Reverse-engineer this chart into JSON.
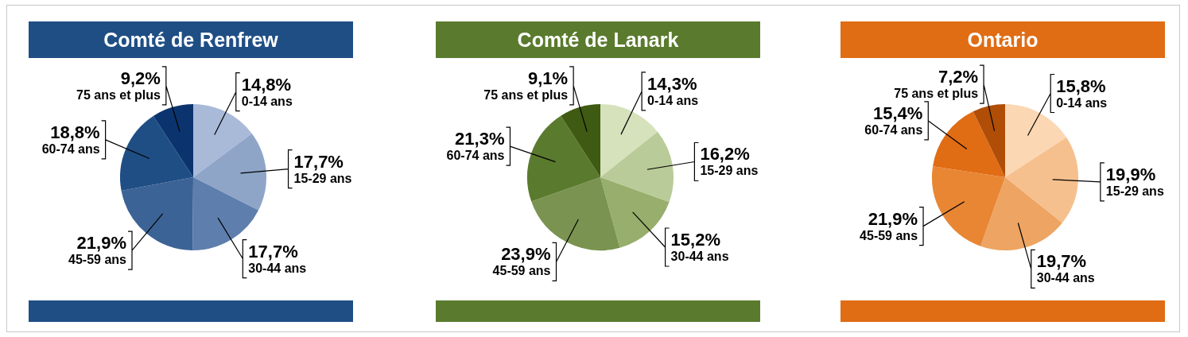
{
  "chart_data": [
    {
      "type": "pie",
      "title": "Comté de Renfrew",
      "categories": [
        "0-14 ans",
        "15-29 ans",
        "30-44 ans",
        "45-59 ans",
        "60-74 ans",
        "75 ans et plus"
      ],
      "values": [
        14.8,
        17.7,
        17.7,
        21.9,
        18.8,
        9.2
      ],
      "value_labels": [
        "14,8%",
        "17,7%",
        "17,7%",
        "21,9%",
        "18,8%",
        "9,2%"
      ],
      "colors": [
        "#a9b9d8",
        "#8ea5c8",
        "#5e7ead",
        "#3c6396",
        "#1f4e85",
        "#0b346e"
      ]
    },
    {
      "type": "pie",
      "title": "Comté de Lanark",
      "categories": [
        "0-14 ans",
        "15-29 ans",
        "30-44 ans",
        "45-59 ans",
        "60-74 ans",
        "75 ans et plus"
      ],
      "values": [
        14.3,
        16.2,
        15.2,
        23.9,
        21.3,
        9.1
      ],
      "value_labels": [
        "14,3%",
        "16,2%",
        "15,2%",
        "23,9%",
        "21,3%",
        "9,1%"
      ],
      "colors": [
        "#d6e2bc",
        "#b9cb98",
        "#97ae6c",
        "#7a9350",
        "#5a7a2e",
        "#3f5a12"
      ]
    },
    {
      "type": "pie",
      "title": "Ontario",
      "categories": [
        "0-14 ans",
        "15-29 ans",
        "30-44 ans",
        "45-59 ans",
        "60-74 ans",
        "75 ans et plus"
      ],
      "values": [
        15.8,
        19.9,
        19.7,
        21.9,
        15.4,
        7.2
      ],
      "value_labels": [
        "15,8%",
        "19,9%",
        "19,7%",
        "21,9%",
        "15,4%",
        "7,2%"
      ],
      "colors": [
        "#fbd7b4",
        "#f6c08e",
        "#eea462",
        "#e88634",
        "#e06c14",
        "#b04d06"
      ]
    }
  ]
}
